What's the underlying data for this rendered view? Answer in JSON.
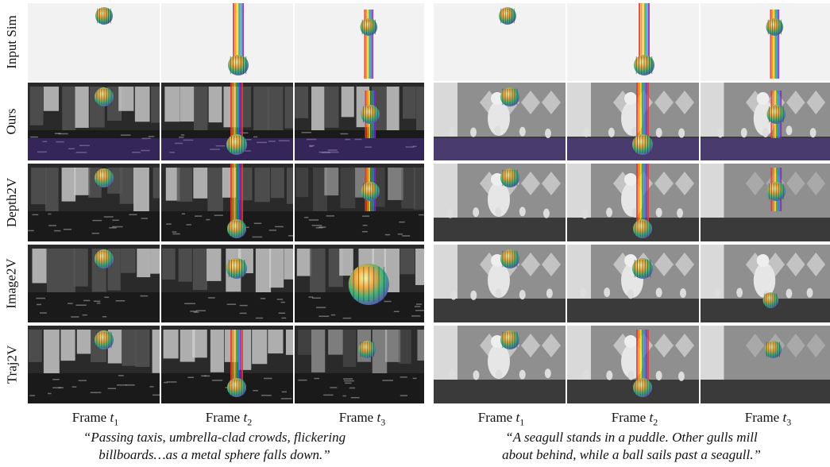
{
  "figure": {
    "row_labels": [
      "Input Sim",
      "Ours",
      "Depth2V",
      "Image2V",
      "Traj2V"
    ],
    "frame_word": "Frame",
    "frame_subscripts": [
      "1",
      "2",
      "3"
    ],
    "left_caption_line1": "“Passing taxis, umbrella-clad crowds, flickering",
    "left_caption_line2": "billboards…as a metal sphere falls down.”",
    "right_caption_line1": "“A seagull stands in a puddle. Other gulls mill",
    "right_caption_line2": "about behind, while a ball sails past a seagull.”"
  }
}
